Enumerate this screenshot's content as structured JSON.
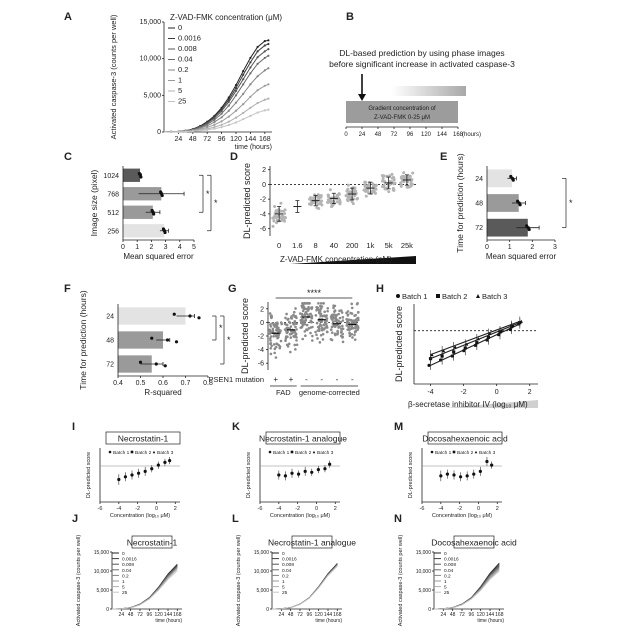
{
  "panel_letters": [
    "A",
    "B",
    "C",
    "D",
    "E",
    "F",
    "G",
    "H",
    "I",
    "J",
    "K",
    "L",
    "M",
    "N"
  ],
  "colors": {
    "dark": "#333333",
    "series_gray": [
      "#222222",
      "#3c3c3c",
      "#555555",
      "#6c6c6c",
      "#848484",
      "#9a9a9a",
      "#b0b0b0",
      "#c4c4c4"
    ],
    "bar_dark": "#5a5a5a",
    "bar_mid": "#9a9a9a",
    "bar_light": "#cfcfcf",
    "bar_lighter": "#e3e3e3"
  },
  "chart_data": [
    {
      "panel": "A",
      "type": "line",
      "legend_title": "Z-VAD-FMK concentration (μM)",
      "x": [
        0,
        12,
        24,
        36,
        48,
        60,
        72,
        84,
        96,
        108,
        120,
        132,
        144,
        156,
        168,
        174
      ],
      "xticks": [
        24,
        48,
        72,
        96,
        120,
        144,
        168
      ],
      "xlabel": "time (hours)",
      "ylabel": "Activated caspase-3 (counts per well)",
      "yticks": [
        "0",
        "5,000",
        "10,000",
        "15,000"
      ],
      "ylim": [
        0,
        15000
      ],
      "xlim": [
        0,
        180
      ],
      "series": [
        {
          "name": "0",
          "values": [
            0,
            30,
            80,
            180,
            400,
            800,
            1400,
            2200,
            3300,
            4700,
            6400,
            8300,
            10100,
            11600,
            12400,
            12500
          ]
        },
        {
          "name": "0.0016",
          "values": [
            0,
            30,
            80,
            170,
            380,
            760,
            1300,
            2100,
            3100,
            4400,
            6000,
            7800,
            9500,
            11000,
            11800,
            12000
          ]
        },
        {
          "name": "0.008",
          "values": [
            0,
            30,
            75,
            160,
            350,
            700,
            1200,
            1900,
            2850,
            4100,
            5600,
            7200,
            8800,
            10200,
            11000,
            11300
          ]
        },
        {
          "name": "0.04",
          "values": [
            0,
            25,
            70,
            150,
            320,
            620,
            1050,
            1650,
            2500,
            3600,
            5000,
            6500,
            8000,
            9300,
            10100,
            10400
          ]
        },
        {
          "name": "0.2",
          "values": [
            0,
            25,
            60,
            130,
            270,
            520,
            850,
            1350,
            2000,
            2900,
            4000,
            5200,
            6500,
            7600,
            8400,
            8700
          ]
        },
        {
          "name": "1",
          "values": [
            0,
            20,
            50,
            100,
            200,
            380,
            620,
            980,
            1450,
            2100,
            2900,
            3800,
            4800,
            5700,
            6300,
            6500
          ]
        },
        {
          "name": "5",
          "values": [
            0,
            15,
            35,
            70,
            140,
            260,
            420,
            660,
            980,
            1400,
            1950,
            2600,
            3300,
            3950,
            4400,
            4550
          ]
        },
        {
          "name": "25",
          "values": [
            0,
            10,
            25,
            50,
            100,
            180,
            290,
            450,
            660,
            950,
            1300,
            1750,
            2200,
            2650,
            2950,
            3050
          ]
        }
      ]
    },
    {
      "panel": "B",
      "type": "diagram",
      "title_line1": "DL-based prediction by using phase images",
      "title_line2": "before significant increase in activated caspase-3",
      "gradient_line1": "Gradient concentration of",
      "gradient_line2": "Z-VAD-FMK 0-25 μM",
      "xticks": [
        0,
        24,
        48,
        72,
        96,
        120,
        144,
        168
      ],
      "xlabel": "(hours)",
      "arrow_at": 24
    },
    {
      "panel": "C",
      "type": "bar",
      "orientation": "horizontal",
      "ylabel": "Image size (pixel)",
      "xlabel": "Mean squared error",
      "categories": [
        "1024",
        "768",
        "512",
        "256"
      ],
      "values": [
        1.2,
        2.7,
        2.1,
        2.9
      ],
      "errors": [
        0.1,
        1.6,
        0.5,
        0.3
      ],
      "xticks": [
        0,
        1,
        2,
        3,
        4,
        5
      ],
      "xlim": [
        0,
        5
      ],
      "significance": [
        "*",
        "*"
      ]
    },
    {
      "panel": "D",
      "type": "scatter",
      "ylabel": "DL-predicted score",
      "xlabel": "Z-VAD-FMK concentration (nM)",
      "categories": [
        "0",
        "1.6",
        "8",
        "40",
        "200",
        "1k",
        "5k",
        "25k"
      ],
      "means": [
        -4.0,
        -3.0,
        -2.2,
        -1.9,
        -1.3,
        -0.5,
        0.2,
        0.6
      ],
      "sd": [
        1.0,
        0.8,
        0.7,
        0.7,
        0.8,
        0.8,
        0.8,
        0.7
      ],
      "yticks": [
        2,
        0,
        -2,
        -4,
        -6
      ],
      "ylim": [
        -7,
        2.5
      ]
    },
    {
      "panel": "E",
      "type": "bar",
      "orientation": "horizontal",
      "ylabel": "Time for prediction (hours)",
      "xlabel": "Mean squared error",
      "categories": [
        "24",
        "48",
        "72"
      ],
      "values": [
        1.1,
        1.4,
        1.8
      ],
      "errors": [
        0.2,
        0.3,
        0.5
      ],
      "xticks": [
        0,
        1,
        2,
        3
      ],
      "xlim": [
        0,
        3
      ],
      "significance": [
        "*"
      ]
    },
    {
      "panel": "F",
      "type": "bar",
      "orientation": "horizontal",
      "ylabel": "Time for prediction (hours)",
      "xlabel": "R-squared",
      "categories": [
        "24",
        "48",
        "72"
      ],
      "values": [
        0.7,
        0.6,
        0.55
      ],
      "errors": [
        0.04,
        0.03,
        0.05
      ],
      "xticks": [
        "0.4",
        "0.5",
        "0.6",
        "0.7",
        "0.8"
      ],
      "xlim": [
        0.4,
        0.8
      ],
      "significance": [
        "*",
        "*"
      ]
    },
    {
      "panel": "G",
      "type": "scatter",
      "ylabel": "DL-predicted score",
      "significance": "****",
      "row_label": "PSEN1 mutation",
      "signs": [
        "+",
        "+",
        "-",
        "-",
        "-",
        "-"
      ],
      "group_labels": [
        "FAD",
        "genome-corrected"
      ],
      "means": [
        -1.6,
        -1.1,
        0.8,
        0.4,
        -0.2,
        -0.3
      ],
      "yticks": [
        2,
        0,
        -2,
        -4,
        -6
      ],
      "ylim": [
        -7,
        3
      ]
    },
    {
      "panel": "H",
      "type": "scatter",
      "ylabel": "DL-predicted score",
      "xlabel": "β-secretase inhibitor IV (log₁₀ μM)",
      "xticks": [
        -4,
        -2,
        0,
        2
      ],
      "xlim": [
        -5,
        2.5
      ],
      "ylim": [
        -4,
        2
      ],
      "series": [
        {
          "name": "Batch 1",
          "marker": "circle",
          "x": [
            -4,
            -3.3,
            -2.6,
            -1.9,
            -1.2,
            -0.5,
            0.2,
            0.9,
            1.4
          ],
          "y": [
            -2.6,
            -2.2,
            -1.9,
            -1.5,
            -1.1,
            -0.7,
            -0.3,
            0.1,
            0.5
          ]
        },
        {
          "name": "Batch 2",
          "marker": "square",
          "x": [
            -4,
            -3.3,
            -2.6,
            -1.9,
            -1.2,
            -0.5,
            0.2,
            0.9,
            1.4
          ],
          "y": [
            -2.1,
            -1.9,
            -1.6,
            -1.3,
            -0.9,
            -0.5,
            -0.1,
            0.3,
            0.6
          ]
        },
        {
          "name": "Batch 3",
          "marker": "triangle",
          "x": [
            -4,
            -3.3,
            -2.6,
            -1.9,
            -1.2,
            -0.5,
            0.2,
            0.9,
            1.4
          ],
          "y": [
            -1.8,
            -1.5,
            -1.2,
            -1.0,
            -0.6,
            -0.2,
            0.0,
            0.4,
            0.7
          ]
        }
      ]
    },
    {
      "panel": "I",
      "type": "scatter",
      "title": "Necrostatin-1",
      "ylabel": "DL-predicted score",
      "xlabel": "Concentration (log₁₀ μM)",
      "legend": [
        "Batch 1",
        "Batch 2",
        "Batch 3"
      ],
      "xticks": [
        -6,
        -4,
        -2,
        0,
        2
      ],
      "xlim": [
        -6,
        2.5
      ],
      "ylim": [
        -4,
        2
      ],
      "x": [
        -4,
        -3.3,
        -2.6,
        -1.9,
        -1.2,
        -0.5,
        0.2,
        0.9,
        1.4
      ],
      "y": [
        -1.5,
        -1.2,
        -1.0,
        -0.8,
        -0.6,
        -0.3,
        0.1,
        0.4,
        0.6
      ],
      "err": [
        0.6,
        0.5,
        0.5,
        0.5,
        0.5,
        0.4,
        0.4,
        0.4,
        0.4
      ]
    },
    {
      "panel": "K",
      "type": "scatter",
      "title": "Necrostatin-1 analogue",
      "ylabel": "DL-predicted score",
      "xlabel": "Concentration (log₁₀ μM)",
      "legend": [
        "Batch 1",
        "Batch 2",
        "Batch 3"
      ],
      "xticks": [
        -6,
        -4,
        -2,
        0,
        2
      ],
      "xlim": [
        -6,
        2.5
      ],
      "ylim": [
        -4,
        2
      ],
      "x": [
        -4,
        -3.3,
        -2.6,
        -1.9,
        -1.2,
        -0.5,
        0.2,
        0.9,
        1.4
      ],
      "y": [
        -1.0,
        -1.1,
        -0.8,
        -0.9,
        -0.6,
        -0.7,
        -0.4,
        -0.3,
        0.2
      ],
      "err": [
        0.5,
        0.5,
        0.5,
        0.4,
        0.5,
        0.4,
        0.4,
        0.4,
        0.4
      ]
    },
    {
      "panel": "M",
      "type": "scatter",
      "title": "Docosahexaenoic acid",
      "ylabel": "DL-predicted score",
      "xlabel": "Concentration (log₁₀ μM)",
      "legend": [
        "Batch 1",
        "Batch 2",
        "Batch 3"
      ],
      "xticks": [
        -6,
        -4,
        -2,
        0,
        2
      ],
      "xlim": [
        -6,
        2.5
      ],
      "ylim": [
        -4,
        2
      ],
      "x": [
        -4,
        -3.3,
        -2.6,
        -1.9,
        -1.2,
        -0.5,
        0.2,
        0.9,
        1.4
      ],
      "y": [
        -1.1,
        -0.9,
        -1.0,
        -1.2,
        -1.1,
        -0.9,
        -0.6,
        0.5,
        0.1
      ],
      "err": [
        0.6,
        0.5,
        0.5,
        0.5,
        0.5,
        0.5,
        0.5,
        0.5,
        0.4
      ]
    },
    {
      "panel": "J",
      "type": "line",
      "title": "Necrostatin-1",
      "ylabel": "Activated caspase-3 (counts per well)",
      "xlabel": "time (hours)",
      "legend": [
        "0",
        "0.0016",
        "0.008",
        "0.04",
        "0.2",
        "1",
        "5",
        "25"
      ],
      "x": [
        0,
        24,
        48,
        72,
        96,
        120,
        144,
        168
      ],
      "xticks": [
        24,
        48,
        72,
        96,
        120,
        144,
        168
      ],
      "yticks": [
        "0",
        "5,000",
        "10,000",
        "15,000"
      ],
      "ylim": [
        0,
        15000
      ],
      "series": [
        {
          "name": "0",
          "values": [
            0,
            80,
            380,
            1300,
            3000,
            5800,
            9200,
            11800
          ]
        },
        {
          "name": "0.0016",
          "values": [
            0,
            80,
            370,
            1250,
            2950,
            5700,
            9000,
            11600
          ]
        },
        {
          "name": "0.008",
          "values": [
            0,
            75,
            360,
            1230,
            2900,
            5600,
            8900,
            11400
          ]
        },
        {
          "name": "0.04",
          "values": [
            0,
            75,
            350,
            1200,
            2850,
            5500,
            8700,
            11200
          ]
        },
        {
          "name": "0.2",
          "values": [
            0,
            70,
            340,
            1180,
            2800,
            5400,
            8500,
            11000
          ]
        },
        {
          "name": "1",
          "values": [
            0,
            70,
            330,
            1150,
            2750,
            5300,
            8300,
            10800
          ]
        },
        {
          "name": "5",
          "values": [
            0,
            65,
            320,
            1120,
            2700,
            5150,
            8100,
            10500
          ]
        },
        {
          "name": "25",
          "values": [
            0,
            60,
            300,
            1080,
            2600,
            5000,
            7800,
            10100
          ]
        }
      ]
    },
    {
      "panel": "L",
      "type": "line",
      "title": "Necrostatin-1 analogue",
      "ylabel": "Activated caspase-3 (counts per well)",
      "xlabel": "time (hours)",
      "legend": [
        "0",
        "0.0016",
        "0.008",
        "0.04",
        "0.2",
        "1",
        "5",
        "25"
      ],
      "x": [
        0,
        24,
        48,
        72,
        96,
        120,
        144,
        168
      ],
      "xticks": [
        24,
        48,
        72,
        96,
        120,
        144,
        168
      ],
      "yticks": [
        "0",
        "5,000",
        "10,000",
        "15,000"
      ],
      "ylim": [
        0,
        15000
      ],
      "series": [
        {
          "name": "0",
          "values": [
            0,
            80,
            380,
            1300,
            3000,
            5900,
            9300,
            12000
          ]
        },
        {
          "name": "0.0016",
          "values": [
            0,
            80,
            375,
            1280,
            2980,
            5850,
            9200,
            11900
          ]
        },
        {
          "name": "0.008",
          "values": [
            0,
            78,
            370,
            1270,
            2960,
            5800,
            9100,
            11800
          ]
        },
        {
          "name": "0.04",
          "values": [
            0,
            77,
            365,
            1260,
            2940,
            5750,
            9000,
            11700
          ]
        },
        {
          "name": "0.2",
          "values": [
            0,
            76,
            360,
            1250,
            2920,
            5700,
            8950,
            11600
          ]
        },
        {
          "name": "1",
          "values": [
            0,
            75,
            355,
            1240,
            2900,
            5650,
            8900,
            11500
          ]
        },
        {
          "name": "5",
          "values": [
            0,
            74,
            350,
            1230,
            2880,
            5600,
            8850,
            11400
          ]
        },
        {
          "name": "25",
          "values": [
            0,
            73,
            345,
            1220,
            2860,
            5550,
            8800,
            11300
          ]
        }
      ]
    },
    {
      "panel": "N",
      "type": "line",
      "title": "Docosahexaenoic acid",
      "ylabel": "Activated caspase-3 (counts per well)",
      "xlabel": "time (hours)",
      "legend": [
        "0",
        "0.0016",
        "0.008",
        "0.04",
        "0.2",
        "1",
        "5",
        "25"
      ],
      "x": [
        0,
        24,
        48,
        72,
        96,
        120,
        144,
        168
      ],
      "xticks": [
        24,
        48,
        72,
        96,
        120,
        144,
        168
      ],
      "yticks": [
        "0",
        "5,000",
        "10,000",
        "15,000"
      ],
      "ylim": [
        0,
        15000
      ],
      "series": [
        {
          "name": "0",
          "values": [
            0,
            80,
            380,
            1300,
            3000,
            5900,
            9400,
            12100
          ]
        },
        {
          "name": "0.0016",
          "values": [
            0,
            80,
            370,
            1270,
            2950,
            5800,
            9200,
            11800
          ]
        },
        {
          "name": "0.008",
          "values": [
            0,
            78,
            360,
            1240,
            2900,
            5650,
            9000,
            11500
          ]
        },
        {
          "name": "0.04",
          "values": [
            0,
            76,
            350,
            1210,
            2850,
            5500,
            8800,
            11200
          ]
        },
        {
          "name": "0.2",
          "values": [
            0,
            74,
            340,
            1180,
            2800,
            5350,
            8550,
            10900
          ]
        },
        {
          "name": "1",
          "values": [
            0,
            72,
            330,
            1150,
            2740,
            5200,
            8300,
            10600
          ]
        },
        {
          "name": "5",
          "values": [
            0,
            70,
            320,
            1120,
            2680,
            5050,
            8050,
            10300
          ]
        },
        {
          "name": "25",
          "values": [
            0,
            68,
            310,
            1090,
            2620,
            4900,
            7800,
            10000
          ]
        }
      ]
    }
  ]
}
